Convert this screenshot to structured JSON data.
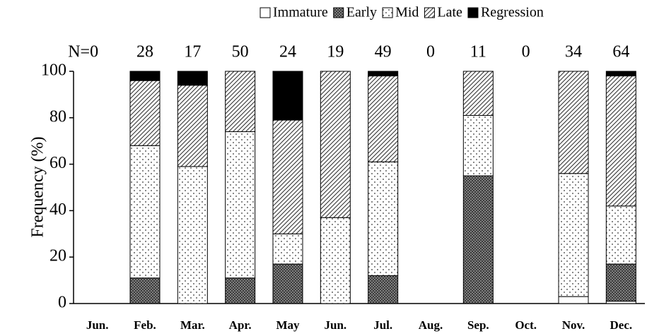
{
  "chart_data": {
    "type": "stacked-bar",
    "y_label": "Frequency (%)",
    "categories": [
      "Jun.",
      "Feb.",
      "Mar.",
      "Apr.",
      "May",
      "Jun.",
      "Jul.",
      "Aug.",
      "Sep.",
      "Oct.",
      "Nov.",
      "Dec."
    ],
    "annotations": [
      "N=0",
      "28",
      "17",
      "50",
      "24",
      "19",
      "49",
      "0",
      "11",
      "0",
      "34",
      "64"
    ],
    "series": [
      {
        "name": "Immature",
        "color": "#ffffff",
        "pattern": "solid",
        "values": [
          0,
          0,
          0,
          0,
          0,
          0,
          0,
          0,
          0,
          0,
          3,
          1
        ]
      },
      {
        "name": "Early",
        "color": "#6e6e6e",
        "pattern": "crosshatch",
        "values": [
          0,
          11,
          0,
          11,
          17,
          0,
          12,
          0,
          55,
          0,
          0,
          16
        ]
      },
      {
        "name": "Mid",
        "color": "#ffffff",
        "pattern": "dots",
        "values": [
          0,
          57,
          59,
          63,
          13,
          37,
          49,
          0,
          26,
          0,
          53,
          25
        ]
      },
      {
        "name": "Late",
        "color": "#ffffff",
        "pattern": "diagonal",
        "values": [
          0,
          28,
          35,
          26,
          49,
          63,
          37,
          0,
          19,
          0,
          44,
          56
        ]
      },
      {
        "name": "Regression",
        "color": "#000000",
        "pattern": "solid",
        "values": [
          0,
          4,
          6,
          0,
          21,
          0,
          2,
          0,
          0,
          0,
          0,
          2
        ]
      }
    ],
    "ylim": [
      0,
      100
    ],
    "yticks": [
      0,
      20,
      40,
      60,
      80,
      100
    ]
  }
}
